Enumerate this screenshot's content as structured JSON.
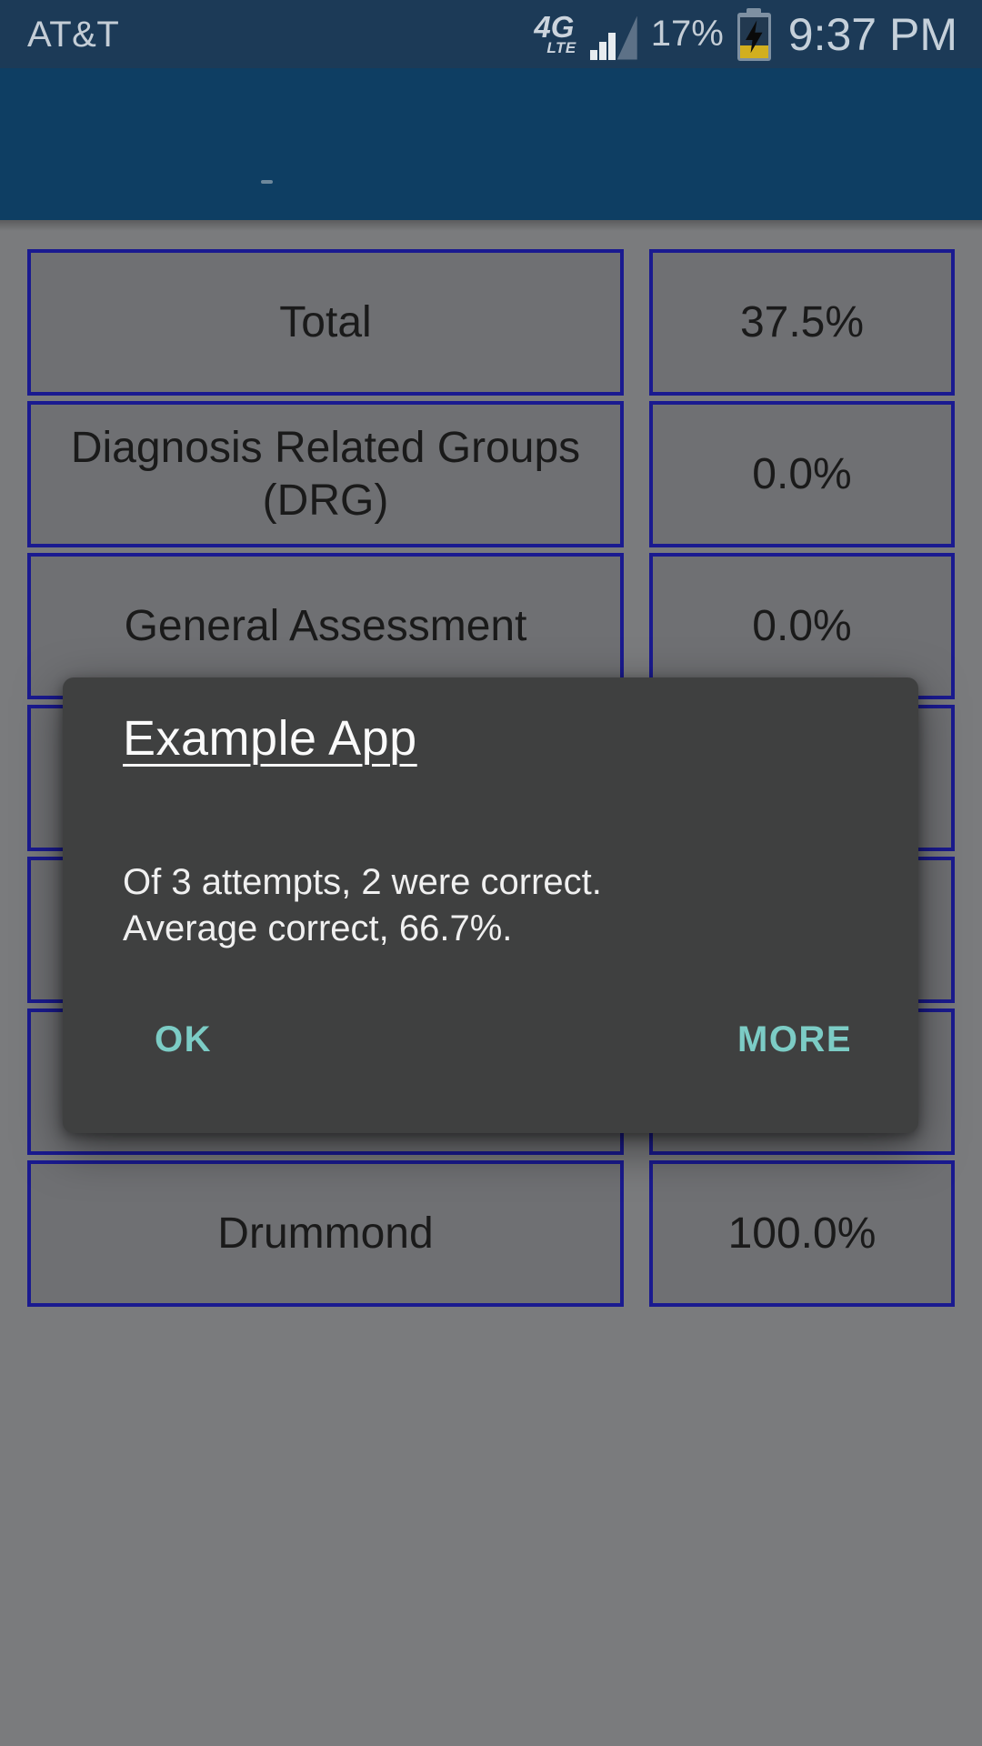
{
  "status_bar": {
    "carrier": "AT&T",
    "network_type": "4G",
    "network_subtype": "LTE",
    "battery_percent": "17%",
    "time": "9:37 PM",
    "icons": {
      "signal": "signal-strength-triangle-icon",
      "battery": "battery-charging-icon"
    }
  },
  "header": {
    "title": ""
  },
  "table": {
    "rows": [
      {
        "label": "Total",
        "value": "37.5%"
      },
      {
        "label": "Diagnosis Related Groups (DRG)",
        "value": "0.0%"
      },
      {
        "label": "General Assessment",
        "value": "0.0%"
      },
      {
        "label": "",
        "value": ""
      },
      {
        "label": "",
        "value": ""
      },
      {
        "label": "",
        "value": ""
      },
      {
        "label": "Drummond",
        "value": "100.0%"
      }
    ]
  },
  "dialog": {
    "app_name": "Example App",
    "message": "Of 3 attempts, 2 were correct.\nAverage correct, 66.7%.",
    "ok_label": "OK",
    "more_label": "MORE"
  },
  "colors": {
    "status_bar_bg": "#1c3a57",
    "header_bg": "#0e3e63",
    "content_bg": "#7a7b7d",
    "cell_bg": "#6f7073",
    "table_border": "#1a1a90",
    "dialog_bg": "#3f4040",
    "dialog_text": "#f0f0f0",
    "button_accent": "#7cccc5",
    "battery_charge": "#d2af1e",
    "status_text": "#c4cdd6"
  }
}
